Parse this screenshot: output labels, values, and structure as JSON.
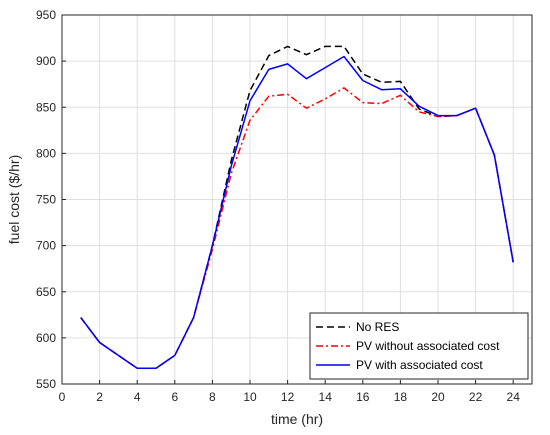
{
  "chart_data": {
    "type": "line",
    "xlabel": "time (hr)",
    "ylabel": "fuel cost ($/hr)",
    "xlim": [
      0,
      25
    ],
    "ylim": [
      550,
      950
    ],
    "xticks": [
      0,
      2,
      4,
      6,
      8,
      10,
      12,
      14,
      16,
      18,
      20,
      22,
      24
    ],
    "yticks": [
      550,
      600,
      650,
      700,
      750,
      800,
      850,
      900,
      950
    ],
    "grid": true,
    "legend_position": "bottom-right",
    "x": [
      1,
      2,
      3,
      4,
      5,
      6,
      7,
      8,
      9,
      10,
      11,
      12,
      13,
      14,
      15,
      16,
      17,
      18,
      19,
      20,
      21,
      22,
      23,
      24
    ],
    "series": [
      {
        "name": "No RES",
        "color": "#000000",
        "style": "dashed",
        "values": [
          622,
          595,
          581,
          567,
          567,
          581,
          622,
          700,
          792,
          868,
          906,
          916,
          907,
          916,
          916,
          886,
          877,
          878,
          848,
          840,
          841,
          849,
          798,
          682
        ]
      },
      {
        "name": "PV without associated cost",
        "color": "#ff0000",
        "style": "dashdot",
        "values": [
          622,
          595,
          581,
          567,
          567,
          581,
          622,
          696,
          778,
          836,
          862,
          864,
          849,
          859,
          871,
          855,
          854,
          863,
          845,
          840,
          841,
          849,
          798,
          682
        ]
      },
      {
        "name": "PV with associated cost",
        "color": "#0000ff",
        "style": "solid",
        "values": [
          622,
          595,
          581,
          567,
          567,
          581,
          622,
          700,
          786,
          857,
          891,
          897,
          881,
          893,
          905,
          879,
          869,
          870,
          851,
          841,
          841,
          849,
          798,
          682
        ]
      }
    ]
  }
}
